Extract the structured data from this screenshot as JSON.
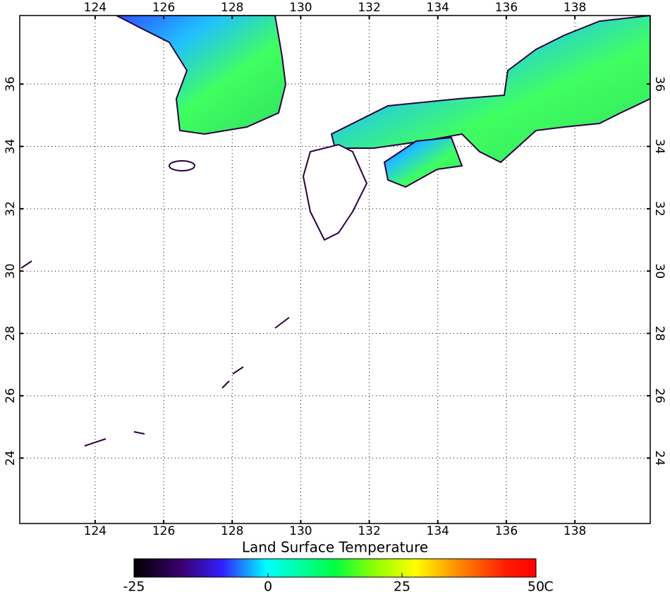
{
  "map": {
    "title": "Land Surface Temperature",
    "xlim": [
      121.8,
      140.2
    ],
    "ylim": [
      21.9,
      38.2
    ],
    "xticks": [
      124,
      126,
      128,
      130,
      132,
      134,
      136,
      138
    ],
    "yticks": [
      24,
      26,
      28,
      30,
      32,
      34,
      36
    ],
    "colorbar": {
      "lim": [
        -25,
        50
      ],
      "ticks": [
        -25,
        0,
        25,
        50
      ],
      "unit": "C"
    }
  }
}
